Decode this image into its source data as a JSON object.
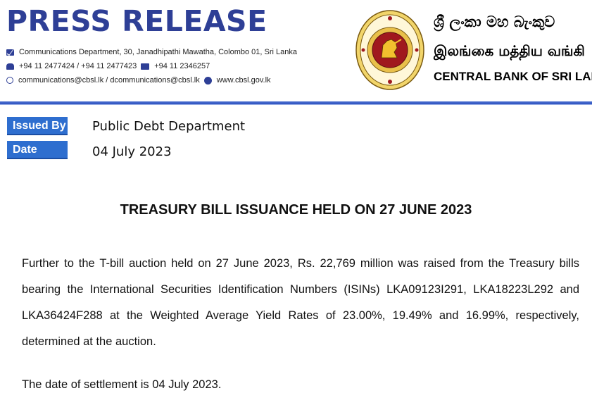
{
  "header": {
    "title": "PRESS RELEASE",
    "address": "Communications Department, 30, Janadhipathi Mawatha, Colombo 01, Sri Lanka",
    "phone": "+94 11 2477424 / +94 11 2477423",
    "fax": "+94 11  2346257",
    "email": "communications@cbsl.lk / dcommunications@cbsl.lk",
    "website": "www.cbsl.gov.lk",
    "bank_name_sinhala": "ශ්‍රී ලංකා මහ බැංකුව",
    "bank_name_tamil": "இலங்கை மத்திய வங்கி",
    "bank_name_english": "CENTRAL BANK OF SRI LANKA",
    "accent_color": "#2e3f96"
  },
  "meta": {
    "issued_by_label": "Issued By",
    "issued_by_value": "Public Debt Department",
    "date_label": "Date",
    "date_value": "04 July 2023"
  },
  "document": {
    "title": "TREASURY BILL ISSUANCE HELD ON 27 JUNE 2023",
    "paragraph_1": "Further to the T-bill auction held on 27 June 2023, Rs. 22,769 million was raised from the Treasury bills bearing the International Securities Identification Numbers (ISINs) LKA09123I291, LKA18223L292 and LKA36424F288 at the Weighted Average Yield Rates of 23.00%, 19.49% and 16.99%, respectively, determined at the auction.",
    "paragraph_2": "The date of settlement is 04 July 2023."
  }
}
